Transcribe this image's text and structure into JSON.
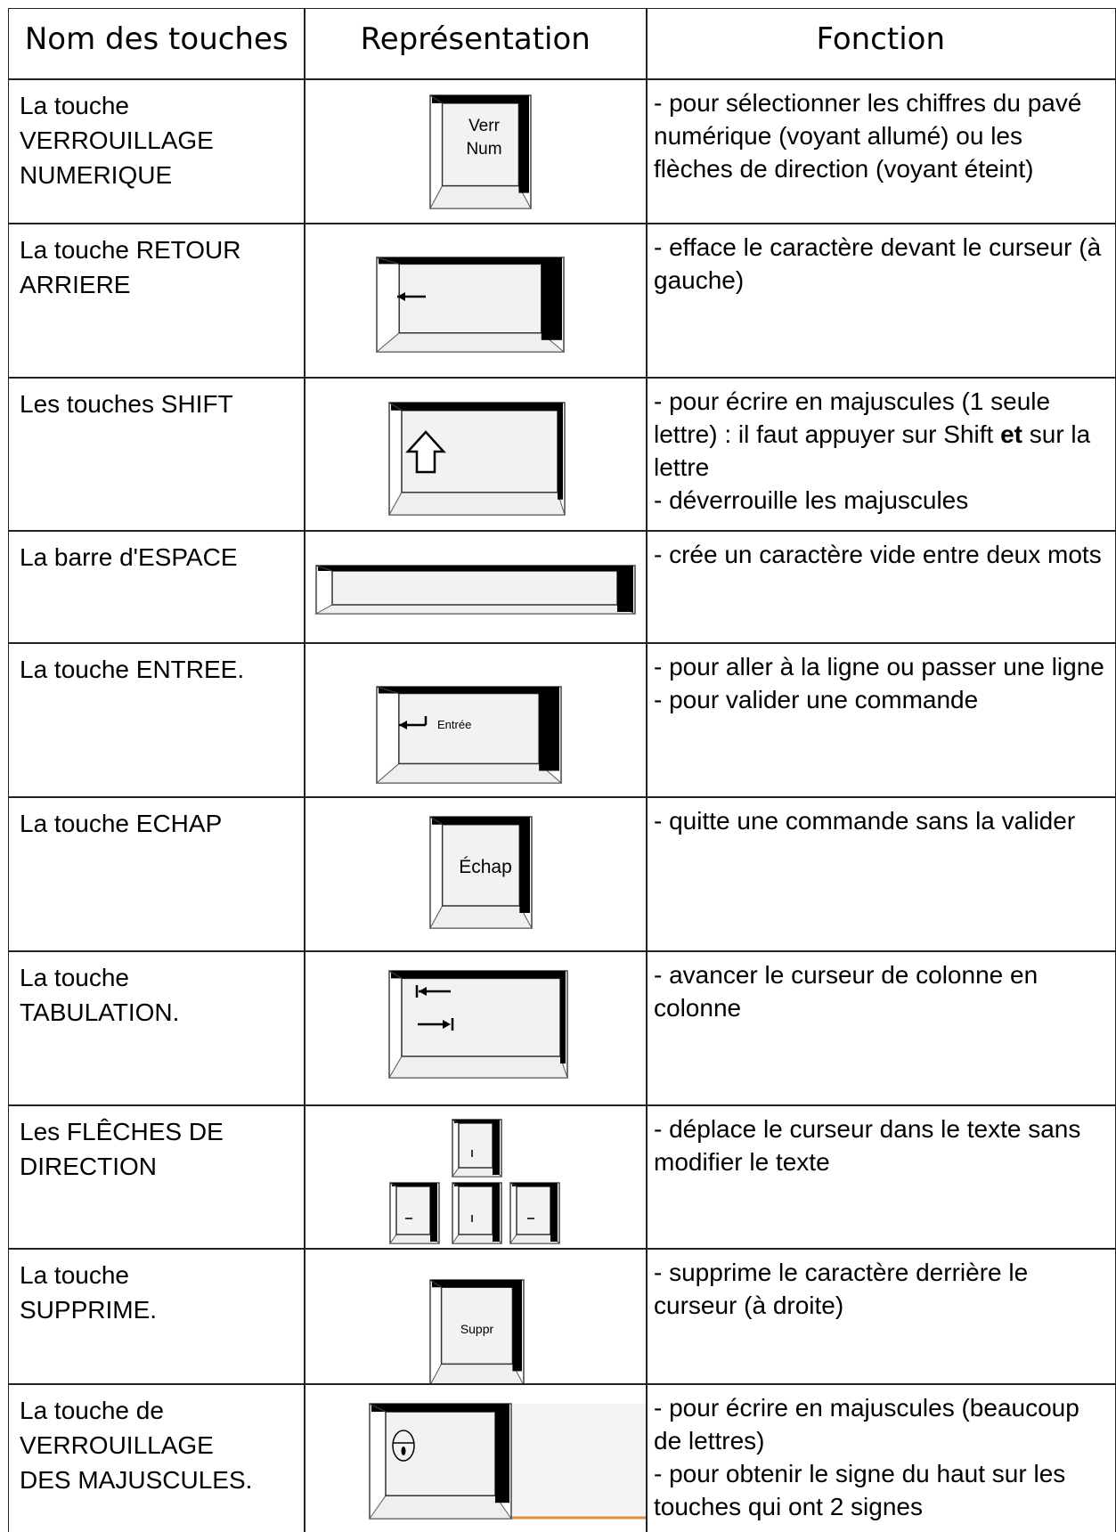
{
  "table": {
    "header": [
      "Nom des touches",
      "Représentation",
      "Fonction"
    ],
    "rows": [
      {
        "name": [
          "La touche",
          "VERROUILLAGE",
          "NUMERIQUE"
        ],
        "key_label": [
          "Verr",
          "Num"
        ],
        "function": [
          [
            {
              "text": "- pour sélectionner les chiffres du pavé numérique (voyant allumé) ou les flèches de direction (voyant éteint)"
            }
          ]
        ]
      },
      {
        "name": [
          "La touche RETOUR",
          "ARRIERE"
        ],
        "function": [
          [
            {
              "text": "- efface le caractère devant le curseur (à gauche)"
            }
          ]
        ]
      },
      {
        "name": [
          "Les touches SHIFT"
        ],
        "function": [
          [
            {
              "text": "- pour écrire en majuscules (1 seule lettre) : il faut appuyer sur Shift "
            },
            {
              "text": "et",
              "bold": true
            },
            {
              "text": " sur la lettre"
            }
          ],
          [
            {
              "text": "- déverrouille les majuscules"
            }
          ]
        ]
      },
      {
        "name": [
          "La barre d'ESPACE"
        ],
        "function": [
          [
            {
              "text": "- crée un caractère vide entre deux mots"
            }
          ]
        ]
      },
      {
        "name": [
          "La touche ENTREE."
        ],
        "key_label": [
          "Entrée"
        ],
        "function": [
          [
            {
              "text": "- pour aller à la ligne ou passer une ligne"
            }
          ],
          [
            {
              "text": "- pour valider une commande"
            }
          ]
        ]
      },
      {
        "name": [
          "La touche ECHAP"
        ],
        "key_label": [
          "Échap"
        ],
        "function": [
          [
            {
              "text": "- quitte une commande sans la valider"
            }
          ]
        ]
      },
      {
        "name": [
          "La touche",
          "TABULATION."
        ],
        "function": [
          [
            {
              "text": "- avancer le curseur de colonne en colonne"
            }
          ]
        ]
      },
      {
        "name": [
          "Les FLÊCHES DE",
          "DIRECTION"
        ],
        "function": [
          [
            {
              "text": "- déplace le curseur dans le texte sans modifier le texte"
            }
          ]
        ]
      },
      {
        "name": [
          "La touche",
          "SUPPRIME."
        ],
        "key_label": [
          "Suppr"
        ],
        "function": [
          [
            {
              "text": "- supprime le caractère derrière le curseur (à droite)"
            }
          ]
        ]
      },
      {
        "name": [
          "La touche de",
          "VERROUILLAGE",
          "DES MAJUSCULES."
        ],
        "function": [
          [
            {
              "text": "- pour écrire en majuscules (beaucoup de lettres)"
            }
          ],
          [
            {
              "text": "- pour obtenir le signe du haut sur les touches qui ont 2 signes"
            }
          ]
        ]
      }
    ]
  }
}
